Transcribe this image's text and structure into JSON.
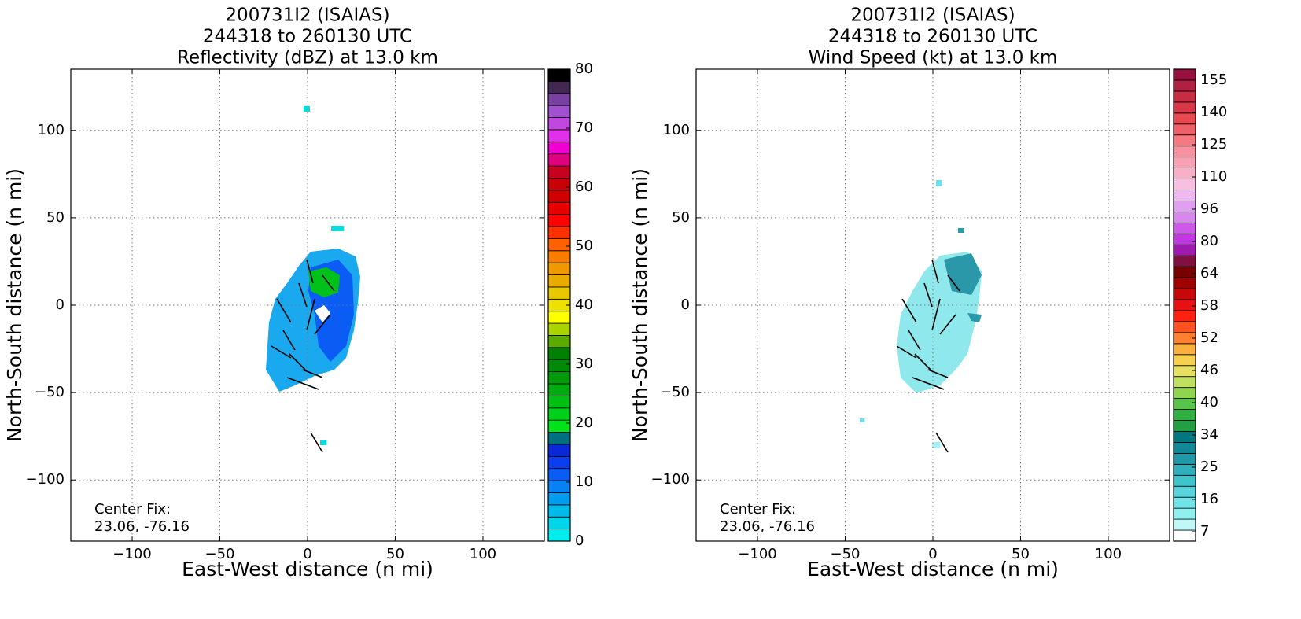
{
  "chart_data": [
    {
      "type": "radar",
      "title": [
        "200731I2 (ISAIAS)",
        "244318 to 260130 UTC",
        "Reflectivity (dBZ) at 13.0 km"
      ],
      "xlabel": "East-West distance (n mi)",
      "ylabel": "North-South distance (n mi)",
      "annotation": [
        "Center Fix:",
        "23.06, -76.16"
      ],
      "xlim": [
        -135,
        135
      ],
      "ylim": [
        -135,
        135
      ],
      "xticks": [
        {
          "value": -100,
          "label": "−100"
        },
        {
          "value": -50,
          "label": "−50"
        },
        0,
        50,
        100
      ],
      "yticks": [
        {
          "value": -100,
          "label": "−100"
        },
        {
          "value": -50,
          "label": "−50"
        },
        0,
        50,
        100
      ],
      "grid": true,
      "colorbar": {
        "lim": [
          0,
          80
        ],
        "ticks": [
          0,
          10,
          20,
          30,
          40,
          50,
          60,
          70,
          80
        ],
        "colors": [
          "#00eded",
          "#00d4e8",
          "#00bbea",
          "#009cf0",
          "#0a80f5",
          "#0a5cf5",
          "#0a3ef0",
          "#0a28d8",
          "#007080",
          "#00e21a",
          "#00d01a",
          "#00be14",
          "#00aa10",
          "#009a0a",
          "#008a08",
          "#008000",
          "#5aaa00",
          "#aad400",
          "#ffff00",
          "#eee000",
          "#e8c800",
          "#e8ac00",
          "#f09800",
          "#f87c00",
          "#ff6000",
          "#ff3000",
          "#ff0000",
          "#e80000",
          "#d00000",
          "#c80008",
          "#c80020",
          "#e00080",
          "#f000d0",
          "#e030e8",
          "#c048e0",
          "#a050d0",
          "#7840a0",
          "#402850",
          "#000000"
        ]
      },
      "bands": 32
    },
    {
      "type": "radar",
      "title": [
        "200731I2 (ISAIAS)",
        "244318 to 260130 UTC",
        "Wind Speed (kt) at 13.0 km"
      ],
      "xlabel": "East-West distance (n mi)",
      "ylabel": "North-South distance (n mi)",
      "annotation": [
        "Center Fix:",
        "23.06, -76.16"
      ],
      "xlim": [
        -135,
        135
      ],
      "ylim": [
        -135,
        135
      ],
      "xticks": [
        {
          "value": -100,
          "label": "−100"
        },
        {
          "value": -50,
          "label": "−50"
        },
        0,
        50,
        100
      ],
      "yticks": [
        {
          "value": -100,
          "label": "−100"
        },
        {
          "value": -50,
          "label": "−50"
        },
        0,
        50,
        100
      ],
      "grid": true,
      "colorbar": {
        "ticks": [
          7,
          16,
          25,
          34,
          40,
          46,
          52,
          58,
          64,
          80,
          96,
          110,
          125,
          140,
          155
        ],
        "colors": [
          "#ffffff",
          "#c0f8f8",
          "#90f0f0",
          "#70e4e8",
          "#58d4dc",
          "#40c4cc",
          "#30b0bc",
          "#2098a8",
          "#108898",
          "#007880",
          "#20a040",
          "#30b040",
          "#58c448",
          "#90d450",
          "#c0e060",
          "#e8e060",
          "#f8d050",
          "#f8b040",
          "#ff8030",
          "#ff5020",
          "#ff2010",
          "#e81010",
          "#c80808",
          "#a00000",
          "#780000",
          "#801040",
          "#a018b0",
          "#c038e0",
          "#d058e8",
          "#d888ec",
          "#e0a0f0",
          "#f0b8f0",
          "#f8c0e0",
          "#f8b0c8",
          "#f8a0b4",
          "#f890a0",
          "#f87880",
          "#f06068",
          "#e84850",
          "#d83848",
          "#c82c44",
          "#b02040",
          "#981040"
        ]
      }
    }
  ]
}
